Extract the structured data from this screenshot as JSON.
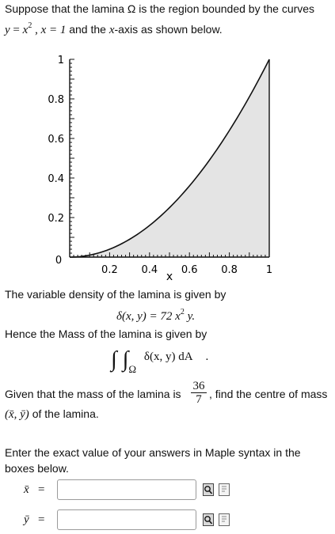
{
  "intro": {
    "line1": "Suppose that the lamina Ω is the region bounded by the curves",
    "eq1_lhs": "y",
    "eq1_eq": " = ",
    "eq1_base": "x",
    "eq1_exp": "2",
    "sep": " ,  ",
    "eq2": "x = 1",
    "and_text": "and the ",
    "x_var": "x",
    "axis_text": "-axis as shown below."
  },
  "chart_data": {
    "type": "area",
    "function": "y = x^2",
    "x": [
      0,
      0.1,
      0.2,
      0.3,
      0.4,
      0.5,
      0.6,
      0.7,
      0.8,
      0.9,
      1.0
    ],
    "y": [
      0,
      0.01,
      0.04,
      0.09,
      0.16,
      0.25,
      0.36,
      0.49,
      0.64,
      0.81,
      1.0
    ],
    "xlim": [
      0,
      1
    ],
    "ylim": [
      0,
      1
    ],
    "xticks": [
      "0.2",
      "0.4",
      "0.6",
      "0.8",
      "1"
    ],
    "yticks": [
      "0.2",
      "0.4",
      "0.6",
      "0.8",
      "1"
    ],
    "origin_label": "0",
    "xlabel": "x",
    "fill": "#e4e4e4",
    "grid": false
  },
  "density": {
    "intro": "The variable density of the lamina is given by",
    "lhs": "δ(x, y) = 72 ",
    "x": "x",
    "exp": "2",
    "y": " y."
  },
  "mass": {
    "intro": "Hence the Mass of the lamina is given by",
    "integral": "∫ ∫",
    "region": "Ω",
    "integrand": "δ(x, y) dA",
    "dot": "."
  },
  "given": {
    "prefix": "Given that the mass of the lamina is",
    "num": "36",
    "den": "7",
    "suffix": ", find the centre of mass",
    "centre": "(x̄,  ȳ)",
    "of": " of the lamina."
  },
  "instructions": {
    "line1": "Enter the exact value of your answers in Maple syntax in the",
    "line2": "boxes below."
  },
  "answers": [
    {
      "label": "x̄",
      "eq": "=",
      "value": ""
    },
    {
      "label": "ȳ",
      "eq": "=",
      "value": ""
    }
  ],
  "icons": {
    "preview": "preview-icon",
    "help": "help-icon"
  }
}
